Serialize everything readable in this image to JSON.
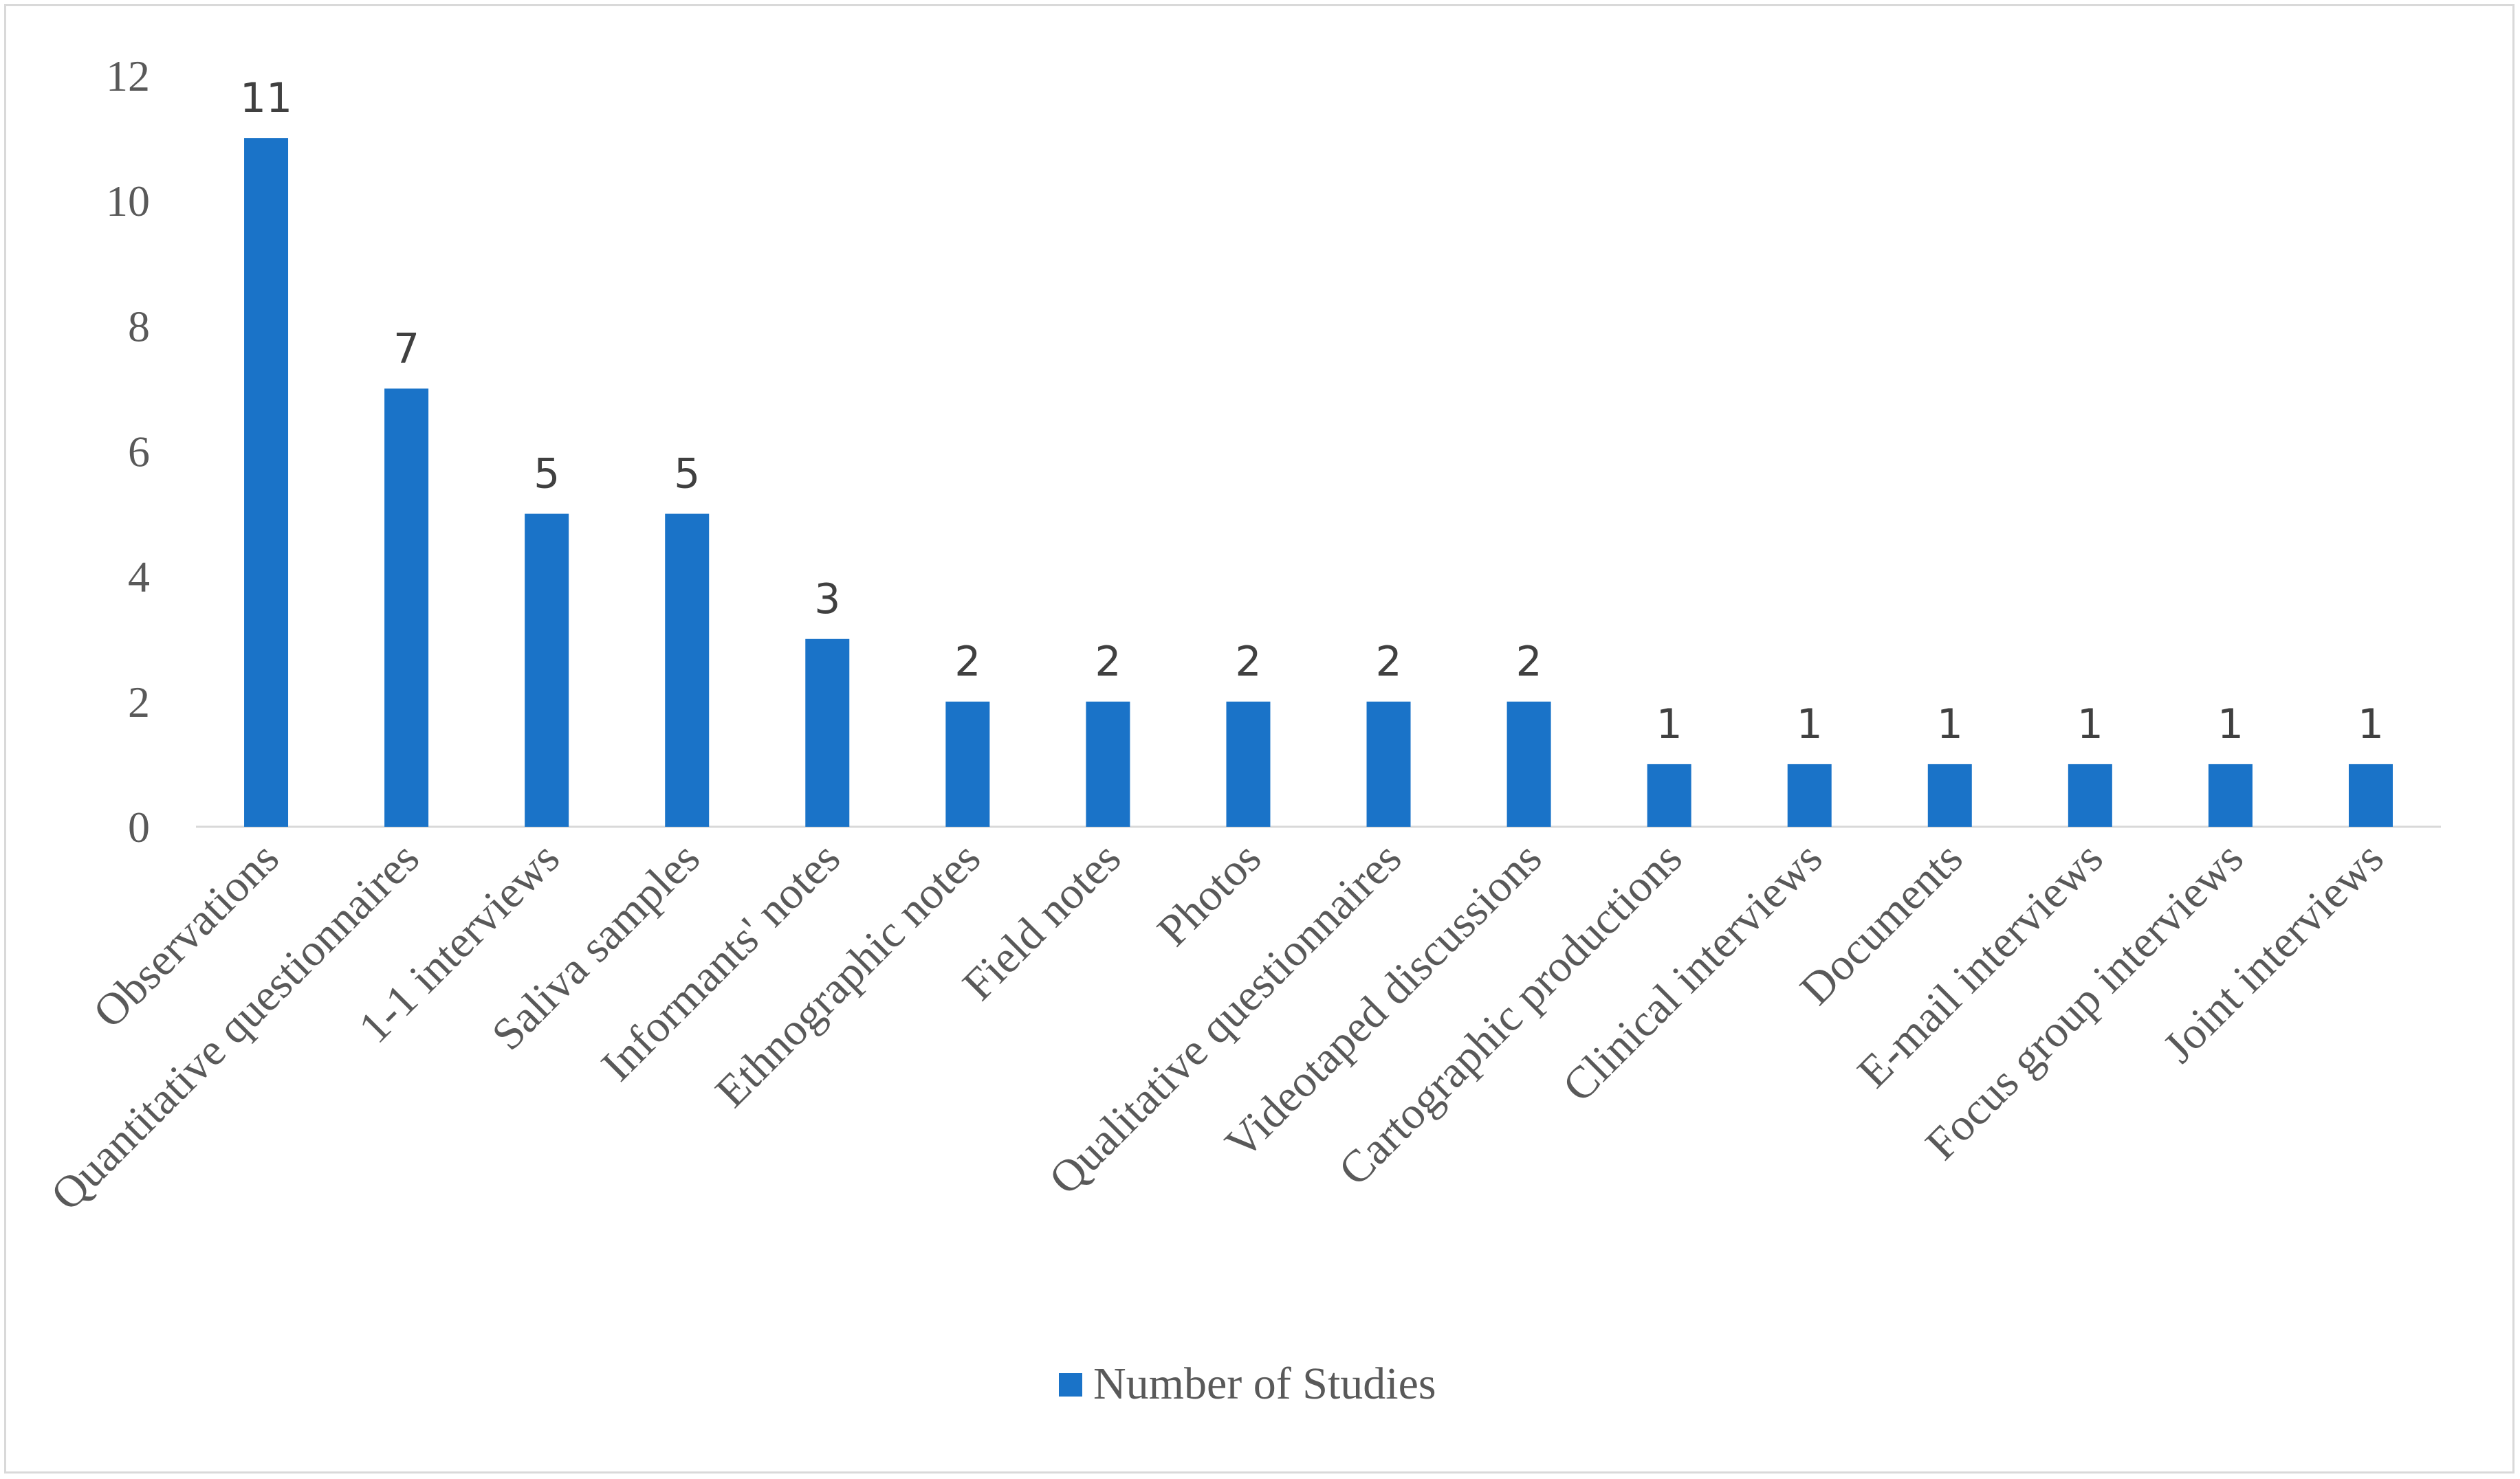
{
  "chart_data": {
    "type": "bar",
    "title": "",
    "xlabel": "",
    "ylabel": "",
    "ylim": [
      0,
      12
    ],
    "yticks": [
      0,
      2,
      4,
      6,
      8,
      10,
      12
    ],
    "grid": false,
    "legend_position": "bottom",
    "categories": [
      "Observations",
      "Quantitative questionnaires",
      "1-1 interviews",
      "Saliva samples",
      "Informants' notes",
      "Ethnographic notes",
      "Field notes",
      "Photos",
      "Qualitative questionnaires",
      "Videotaped discussions",
      "Cartographic productions",
      "Clinical interviews",
      "Documents",
      "E-mail interviews",
      "Focus group interviews",
      "Joint interviews"
    ],
    "series": [
      {
        "name": "Number of Studies",
        "color": "#1a73c8",
        "values": [
          11,
          7,
          5,
          5,
          3,
          2,
          2,
          2,
          2,
          2,
          1,
          1,
          1,
          1,
          1,
          1
        ]
      }
    ],
    "data_labels": true
  }
}
